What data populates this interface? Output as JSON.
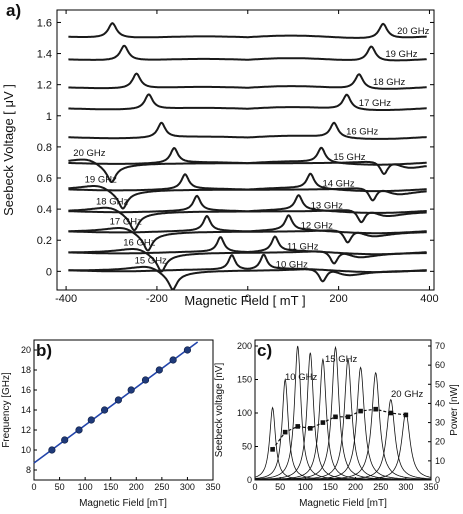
{
  "panel_a": {
    "panel_label": "a)",
    "chart_data": {
      "type": "line",
      "xlabel": "Magnetic Field [ mT ]",
      "ylabel": "Seebeck Voltage [ μV ]",
      "xlim": [
        -420,
        410
      ],
      "ylim": [
        -0.12,
        1.68
      ],
      "x_ticks": [
        "-400",
        "-200",
        "0",
        "200",
        "400"
      ],
      "y_ticks": [
        "0",
        "0.2",
        "0.4",
        "0.6",
        "0.8",
        "1",
        "1.2",
        "1.4",
        "1.6"
      ],
      "peak_amplitude": 0.1,
      "upper_traces": [
        {
          "label": "10 GHz",
          "offset": 0.005,
          "resonance_field": 35
        },
        {
          "label": "11 GHz",
          "offset": 0.12,
          "resonance_field": 60
        },
        {
          "label": "12 GHz",
          "offset": 0.255,
          "resonance_field": 90
        },
        {
          "label": "13 GHz",
          "offset": 0.385,
          "resonance_field": 112
        },
        {
          "label": "14 GHz",
          "offset": 0.525,
          "resonance_field": 138
        },
        {
          "label": "15 GHz",
          "offset": 0.695,
          "resonance_field": 162
        },
        {
          "label": "16 GHz",
          "offset": 0.86,
          "resonance_field": 190
        },
        {
          "label": "17 GHz",
          "offset": 1.045,
          "resonance_field": 218
        },
        {
          "label": "18 GHz",
          "offset": 1.18,
          "resonance_field": 245
        },
        {
          "label": "19 GHz",
          "offset": 1.36,
          "resonance_field": 272
        },
        {
          "label": "20 GHz",
          "offset": 1.505,
          "resonance_field": 298
        }
      ],
      "lower_traces": [
        {
          "label": "15 GHz",
          "offset": 0.005,
          "resonance_field": 165
        },
        {
          "label": "16 GHz",
          "offset": 0.12,
          "resonance_field": 190
        },
        {
          "label": "17 GHz",
          "offset": 0.255,
          "resonance_field": 220
        },
        {
          "label": "18 GHz",
          "offset": 0.385,
          "resonance_field": 250
        },
        {
          "label": "19 GHz",
          "offset": 0.525,
          "resonance_field": 275
        },
        {
          "label": "20 GHz",
          "offset": 0.695,
          "resonance_field": 300
        }
      ]
    }
  },
  "panel_b": {
    "panel_label": "b)",
    "chart_data": {
      "type": "scatter",
      "xlabel": "Magnetic Field [mT]",
      "ylabel": "Frequency [GHz]",
      "xlim": [
        0,
        350
      ],
      "ylim": [
        7,
        21
      ],
      "x_ticks": [
        "0",
        "50",
        "100",
        "150",
        "200",
        "250",
        "300",
        "350"
      ],
      "y_ticks": [
        "8",
        "10",
        "12",
        "14",
        "16",
        "18",
        "20"
      ],
      "points": [
        {
          "x": 35,
          "y": 10
        },
        {
          "x": 60,
          "y": 11
        },
        {
          "x": 88,
          "y": 12
        },
        {
          "x": 112,
          "y": 13
        },
        {
          "x": 138,
          "y": 14
        },
        {
          "x": 165,
          "y": 15
        },
        {
          "x": 190,
          "y": 16
        },
        {
          "x": 218,
          "y": 17
        },
        {
          "x": 245,
          "y": 18
        },
        {
          "x": 272,
          "y": 19
        },
        {
          "x": 300,
          "y": 20
        }
      ],
      "fit_line": {
        "x": [
          0,
          320
        ],
        "y": [
          8.7,
          20.8
        ]
      },
      "marker_color": "#1f3a7a",
      "fit_color": "#2244aa"
    }
  },
  "panel_c": {
    "panel_label": "c)",
    "chart_data": {
      "type": "line",
      "xlabel": "Magnetic Field [mT]",
      "ylabel_left": "Seebeck voltage [nV]",
      "ylabel_right": "Power [nW]",
      "xlim": [
        0,
        350
      ],
      "ylim_left": [
        0,
        200
      ],
      "ylim_right": [
        0,
        70
      ],
      "x_ticks": [
        "0",
        "50",
        "100",
        "150",
        "200",
        "250",
        "300",
        "350"
      ],
      "y_ticks_left": [
        "0",
        "50",
        "100",
        "150",
        "200"
      ],
      "y_ticks_right": [
        "0",
        "10",
        "20",
        "30",
        "40",
        "50",
        "60",
        "70"
      ],
      "annotations": [
        "10 GHz",
        "15 GHz",
        "20 GHz"
      ],
      "peaks": [
        {
          "x": 35,
          "height": 108
        },
        {
          "x": 60,
          "height": 150
        },
        {
          "x": 85,
          "height": 200
        },
        {
          "x": 110,
          "height": 190
        },
        {
          "x": 135,
          "height": 180
        },
        {
          "x": 160,
          "height": 198
        },
        {
          "x": 185,
          "height": 180
        },
        {
          "x": 210,
          "height": 168
        },
        {
          "x": 240,
          "height": 160
        },
        {
          "x": 270,
          "height": 120
        },
        {
          "x": 300,
          "height": 100
        }
      ],
      "power": [
        {
          "x": 35,
          "y": 16
        },
        {
          "x": 60,
          "y": 25
        },
        {
          "x": 85,
          "y": 28
        },
        {
          "x": 110,
          "y": 27
        },
        {
          "x": 135,
          "y": 30
        },
        {
          "x": 160,
          "y": 33
        },
        {
          "x": 185,
          "y": 33
        },
        {
          "x": 210,
          "y": 36
        },
        {
          "x": 240,
          "y": 37
        },
        {
          "x": 270,
          "y": 35
        },
        {
          "x": 300,
          "y": 34
        }
      ]
    }
  }
}
